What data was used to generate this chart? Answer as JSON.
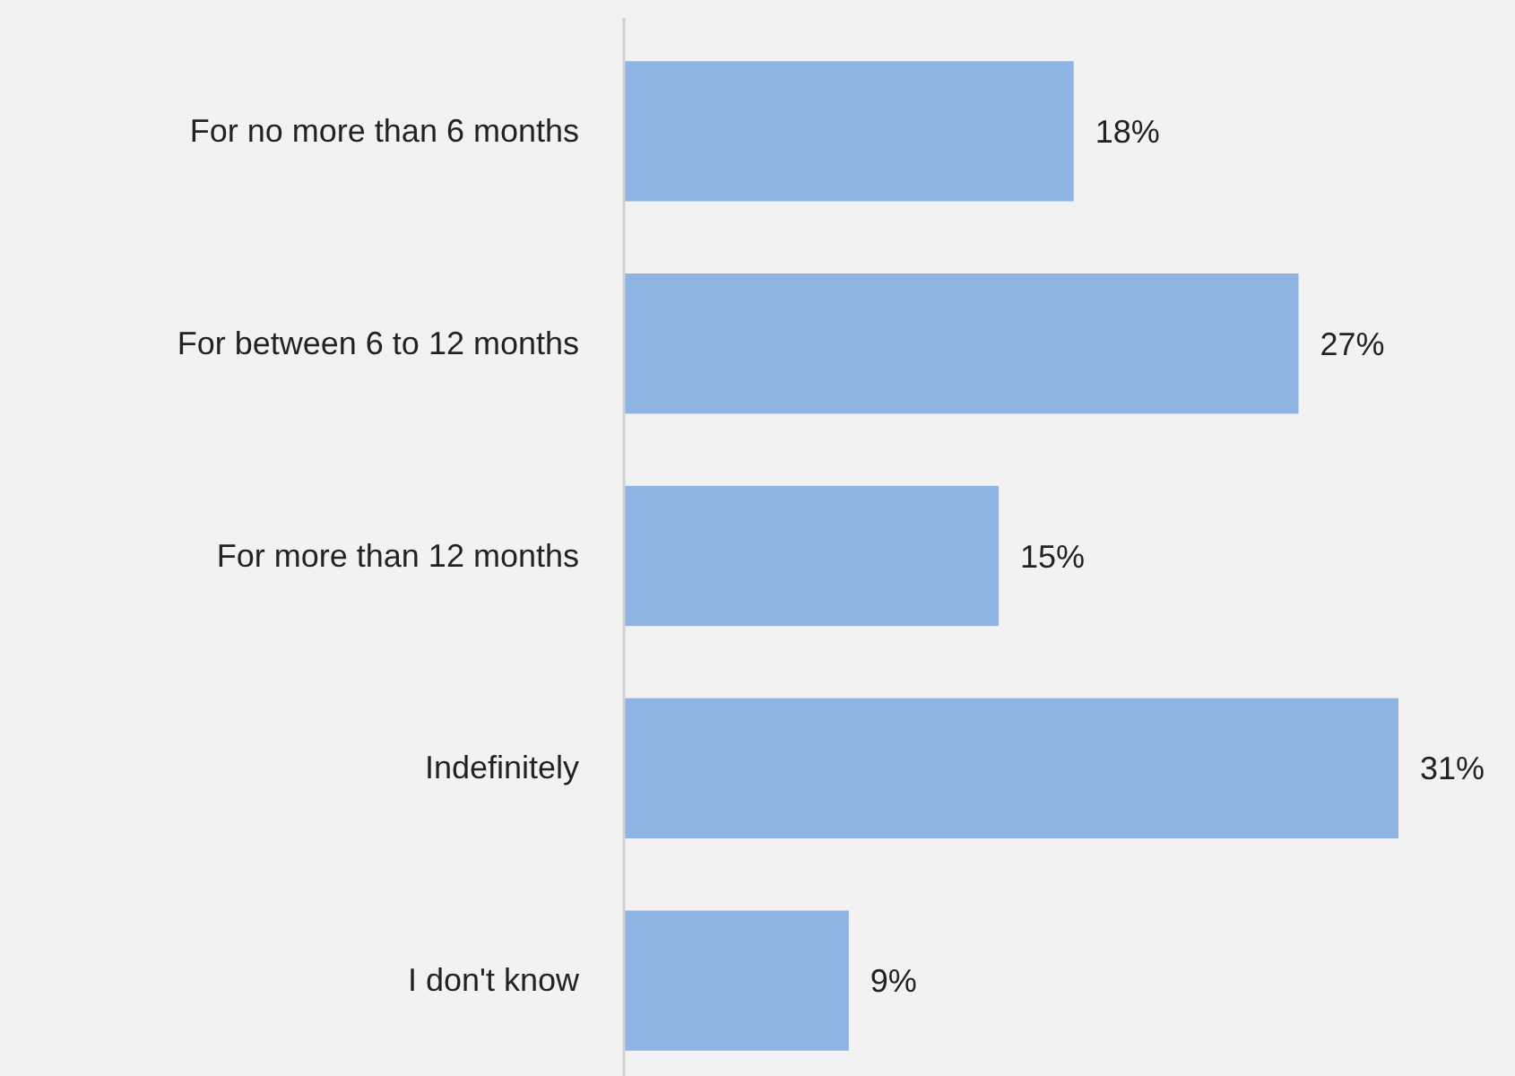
{
  "chart_data": {
    "type": "bar",
    "orientation": "horizontal",
    "categories": [
      "For no more than 6 months",
      "For between 6 to 12 months",
      "For more than 12 months",
      "Indefinitely",
      "I don't know"
    ],
    "values": [
      18,
      27,
      15,
      31,
      9
    ],
    "value_labels": [
      "18%",
      "27%",
      "15%",
      "31%",
      "9%"
    ],
    "color": "#8eb4e3"
  }
}
